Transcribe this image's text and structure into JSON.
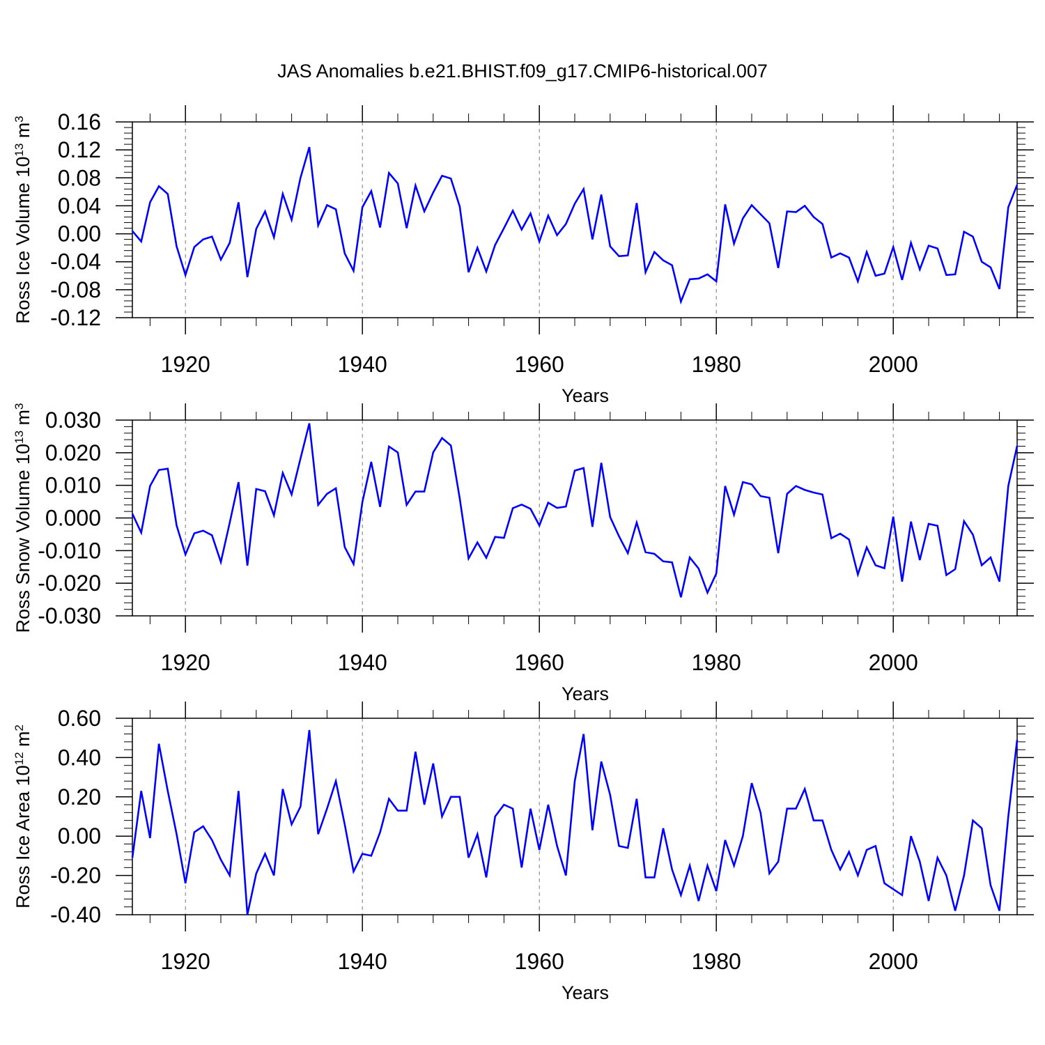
{
  "title": "JAS Anomalies b.e21.BHIST.f09_g17.CMIP6-historical.007",
  "line_color": "#0000ff",
  "chart_data": [
    {
      "type": "line",
      "ylabel_main": "Ross Ice Volume 10",
      "ylabel_exp": "13",
      "ylabel_unit": " m",
      "ylabel_unit_exp": "3",
      "xlabel": "Years",
      "xlim": [
        1914,
        2014
      ],
      "ylim": [
        -0.12,
        0.16
      ],
      "major_x": [
        1920,
        1940,
        1960,
        1980,
        2000
      ],
      "major_x_labels": [
        "1920",
        "1940",
        "1960",
        "1980",
        "2000"
      ],
      "major_y": [
        -0.12,
        -0.08,
        -0.04,
        0.0,
        0.04,
        0.08,
        0.12,
        0.16
      ],
      "major_y_labels": [
        "-0.12",
        "-0.08",
        "-0.04",
        "0.00",
        "0.04",
        "0.08",
        "0.12",
        "0.16"
      ],
      "start_year": 1914,
      "values": [
        0.004,
        -0.011,
        0.045,
        0.068,
        0.057,
        -0.018,
        -0.059,
        -0.019,
        -0.008,
        -0.004,
        -0.037,
        -0.013,
        0.045,
        -0.062,
        0.007,
        0.032,
        -0.005,
        0.057,
        0.02,
        0.08,
        0.124,
        0.012,
        0.041,
        0.035,
        -0.028,
        -0.053,
        0.038,
        0.061,
        0.009,
        0.087,
        0.072,
        0.008,
        0.069,
        0.032,
        0.059,
        0.083,
        0.079,
        0.039,
        -0.055,
        -0.02,
        -0.054,
        -0.016,
        0.008,
        0.033,
        0.006,
        0.029,
        -0.011,
        0.026,
        -0.002,
        0.014,
        0.043,
        0.064,
        -0.008,
        0.056,
        -0.018,
        -0.032,
        -0.031,
        0.044,
        -0.055,
        -0.026,
        -0.038,
        -0.045,
        -0.097,
        -0.065,
        -0.064,
        -0.058,
        -0.068,
        0.042,
        -0.014,
        0.022,
        0.041,
        0.028,
        0.015,
        -0.049,
        0.032,
        0.031,
        0.04,
        0.024,
        0.014,
        -0.034,
        -0.028,
        -0.034,
        -0.068,
        -0.026,
        -0.06,
        -0.057,
        -0.019,
        -0.066,
        -0.013,
        -0.051,
        -0.017,
        -0.021,
        -0.059,
        -0.058,
        0.003,
        -0.004,
        -0.04,
        -0.048,
        -0.079,
        0.038,
        0.07
      ]
    },
    {
      "type": "line",
      "ylabel_main": "Ross Snow Volume 10",
      "ylabel_exp": "13",
      "ylabel_unit": " m",
      "ylabel_unit_exp": "3",
      "xlabel": "Years",
      "xlim": [
        1914,
        2014
      ],
      "ylim": [
        -0.03,
        0.03
      ],
      "major_x": [
        1920,
        1940,
        1960,
        1980,
        2000
      ],
      "major_x_labels": [
        "1920",
        "1940",
        "1960",
        "1980",
        "2000"
      ],
      "major_y": [
        -0.03,
        -0.02,
        -0.01,
        0.0,
        0.01,
        0.02,
        0.03
      ],
      "major_y_labels": [
        "-0.030",
        "-0.020",
        "-0.010",
        "0.000",
        "0.010",
        "0.020",
        "0.030"
      ],
      "start_year": 1914,
      "values": [
        0.0013,
        -0.0045,
        0.0098,
        0.0147,
        0.0151,
        -0.0023,
        -0.0112,
        -0.0047,
        -0.0039,
        -0.0053,
        -0.0135,
        -0.0015,
        0.011,
        -0.0146,
        0.0089,
        0.0082,
        0.0008,
        0.0138,
        0.0072,
        0.0182,
        0.029,
        0.004,
        0.0074,
        0.0091,
        -0.0089,
        -0.0141,
        0.0049,
        0.0172,
        0.0034,
        0.0219,
        0.0201,
        0.004,
        0.0081,
        0.0081,
        0.0201,
        0.0245,
        0.0222,
        0.006,
        -0.0124,
        -0.0075,
        -0.0122,
        -0.0058,
        -0.0061,
        0.003,
        0.0041,
        0.0028,
        -0.0023,
        0.0047,
        0.0031,
        0.0035,
        0.0145,
        0.0153,
        -0.0027,
        0.0169,
        0.0003,
        -0.0056,
        -0.0108,
        -0.0014,
        -0.0105,
        -0.011,
        -0.0133,
        -0.0136,
        -0.0243,
        -0.0121,
        -0.0155,
        -0.0229,
        -0.017,
        0.0098,
        0.001,
        0.011,
        0.0103,
        0.0067,
        0.0062,
        -0.0108,
        0.0074,
        0.0098,
        0.0086,
        0.0078,
        0.0072,
        -0.0062,
        -0.0048,
        -0.0066,
        -0.0173,
        -0.009,
        -0.0145,
        -0.0154,
        0.0004,
        -0.0195,
        -0.0011,
        -0.0129,
        -0.0018,
        -0.0024,
        -0.0175,
        -0.0157,
        -0.001,
        -0.0051,
        -0.0145,
        -0.0121,
        -0.0195,
        0.0098,
        0.0221
      ]
    },
    {
      "type": "line",
      "ylabel_main": "Ross Ice Area 10",
      "ylabel_exp": "12",
      "ylabel_unit": " m",
      "ylabel_unit_exp": "2",
      "xlabel": "Years",
      "xlim": [
        1914,
        2014
      ],
      "ylim": [
        -0.4,
        0.6
      ],
      "major_x": [
        1920,
        1940,
        1960,
        1980,
        2000
      ],
      "major_x_labels": [
        "1920",
        "1940",
        "1960",
        "1980",
        "2000"
      ],
      "major_y": [
        -0.4,
        -0.2,
        0.0,
        0.2,
        0.4,
        0.6
      ],
      "major_y_labels": [
        "-0.40",
        "-0.20",
        "0.00",
        "0.20",
        "0.40",
        "0.60"
      ],
      "start_year": 1914,
      "values": [
        -0.11,
        0.23,
        -0.01,
        0.47,
        0.23,
        0.01,
        -0.24,
        0.02,
        0.05,
        -0.02,
        -0.12,
        -0.2,
        0.23,
        -0.4,
        -0.19,
        -0.09,
        -0.2,
        0.24,
        0.06,
        0.15,
        0.54,
        0.01,
        0.14,
        0.28,
        0.06,
        -0.18,
        -0.09,
        -0.1,
        0.02,
        0.19,
        0.13,
        0.13,
        0.43,
        0.16,
        0.37,
        0.1,
        0.2,
        0.2,
        -0.11,
        0.01,
        -0.21,
        0.1,
        0.16,
        0.14,
        -0.16,
        0.14,
        -0.07,
        0.16,
        -0.05,
        -0.2,
        0.28,
        0.52,
        0.03,
        0.38,
        0.21,
        -0.05,
        -0.06,
        0.19,
        -0.21,
        -0.21,
        0.04,
        -0.17,
        -0.3,
        -0.15,
        -0.33,
        -0.15,
        -0.28,
        -0.02,
        -0.15,
        0.0,
        0.27,
        0.12,
        -0.19,
        -0.13,
        0.14,
        0.14,
        0.24,
        0.08,
        0.08,
        -0.07,
        -0.17,
        -0.08,
        -0.2,
        -0.07,
        -0.05,
        -0.24,
        -0.27,
        -0.3,
        0.0,
        -0.13,
        -0.33,
        -0.11,
        -0.2,
        -0.38,
        -0.2,
        0.08,
        0.04,
        -0.25,
        -0.38,
        0.1,
        0.49
      ]
    }
  ]
}
